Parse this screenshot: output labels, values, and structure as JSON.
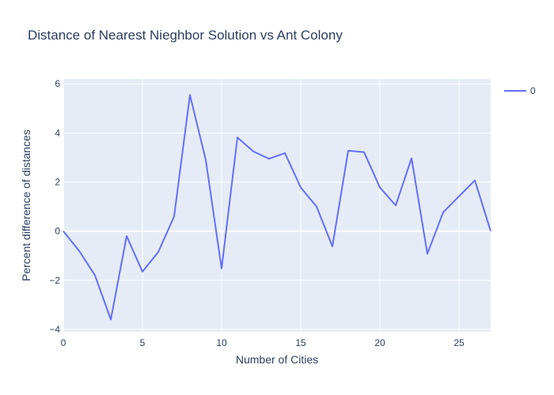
{
  "chart_data": {
    "type": "line",
    "title": "Distance of Nearest Nieghbor Solution vs Ant Colony",
    "xlabel": "Number of Cities",
    "ylabel": "Percent difference of distances",
    "xlim": [
      0,
      27
    ],
    "ylim": [
      -4.1,
      6.2
    ],
    "x_ticks": [
      0,
      5,
      10,
      15,
      20,
      25
    ],
    "y_ticks": [
      -4,
      -2,
      0,
      2,
      4,
      6
    ],
    "grid": true,
    "legend_position": "top-right",
    "series": [
      {
        "name": "0",
        "color": "#636efa",
        "x": [
          0,
          1,
          2,
          3,
          4,
          5,
          6,
          7,
          8,
          9,
          10,
          11,
          12,
          13,
          14,
          15,
          16,
          17,
          18,
          19,
          20,
          21,
          22,
          23,
          24,
          25,
          26,
          27
        ],
        "y": [
          0,
          -0.8,
          -1.8,
          -3.6,
          -0.2,
          -1.65,
          -0.85,
          0.6,
          5.55,
          2.9,
          -1.52,
          3.82,
          3.25,
          2.95,
          3.18,
          1.78,
          1.0,
          -0.62,
          3.28,
          3.22,
          1.78,
          1.05,
          2.97,
          -0.92,
          0.77,
          1.42,
          2.07,
          0
        ]
      }
    ]
  }
}
